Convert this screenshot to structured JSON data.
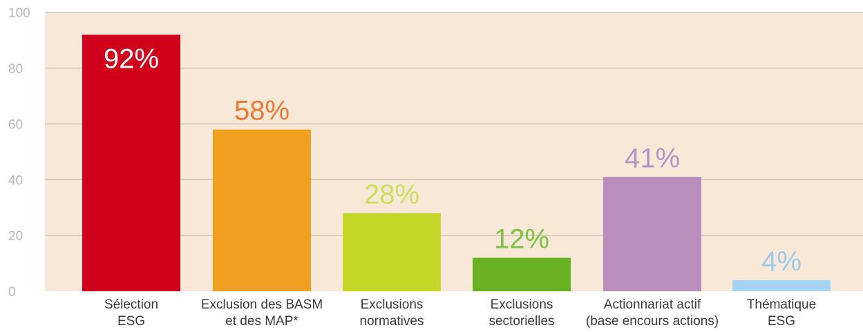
{
  "chart_data": {
    "type": "bar",
    "title": "",
    "xlabel": "",
    "ylabel": "",
    "ylim": [
      0,
      100
    ],
    "yticks": [
      "0",
      "20",
      "40",
      "60",
      "80",
      "100"
    ],
    "grid": true,
    "background_color": "#f7e8d8",
    "gridline_color": "#cbbcae",
    "categories": [
      {
        "line1": "Sélection",
        "line2": "ESG"
      },
      {
        "line1": "Exclusion des BASM",
        "line2": "et des MAP*"
      },
      {
        "line1": "Exclusions",
        "line2": "normatives"
      },
      {
        "line1": "Exclusions",
        "line2": "sectorielles"
      },
      {
        "line1": "Actionnariat actif",
        "line2": "(base encours actions)"
      },
      {
        "line1": "Thématique",
        "line2": "ESG"
      }
    ],
    "values": [
      92,
      58,
      28,
      12,
      41,
      4
    ],
    "value_labels": [
      "92%",
      "58%",
      "28%",
      "12%",
      "41%",
      "4%"
    ],
    "bar_colors": [
      "#d0021b",
      "#f0a020",
      "#c5d82a",
      "#6ab023",
      "#b98ebc",
      "#a6d3f2"
    ],
    "value_label_colors": [
      "#ffffff",
      "#eb7a34",
      "#cfde5c",
      "#7cc243",
      "#b294c6",
      "#9cc9ec"
    ],
    "value_label_inside": [
      true,
      false,
      false,
      false,
      false,
      false
    ]
  }
}
